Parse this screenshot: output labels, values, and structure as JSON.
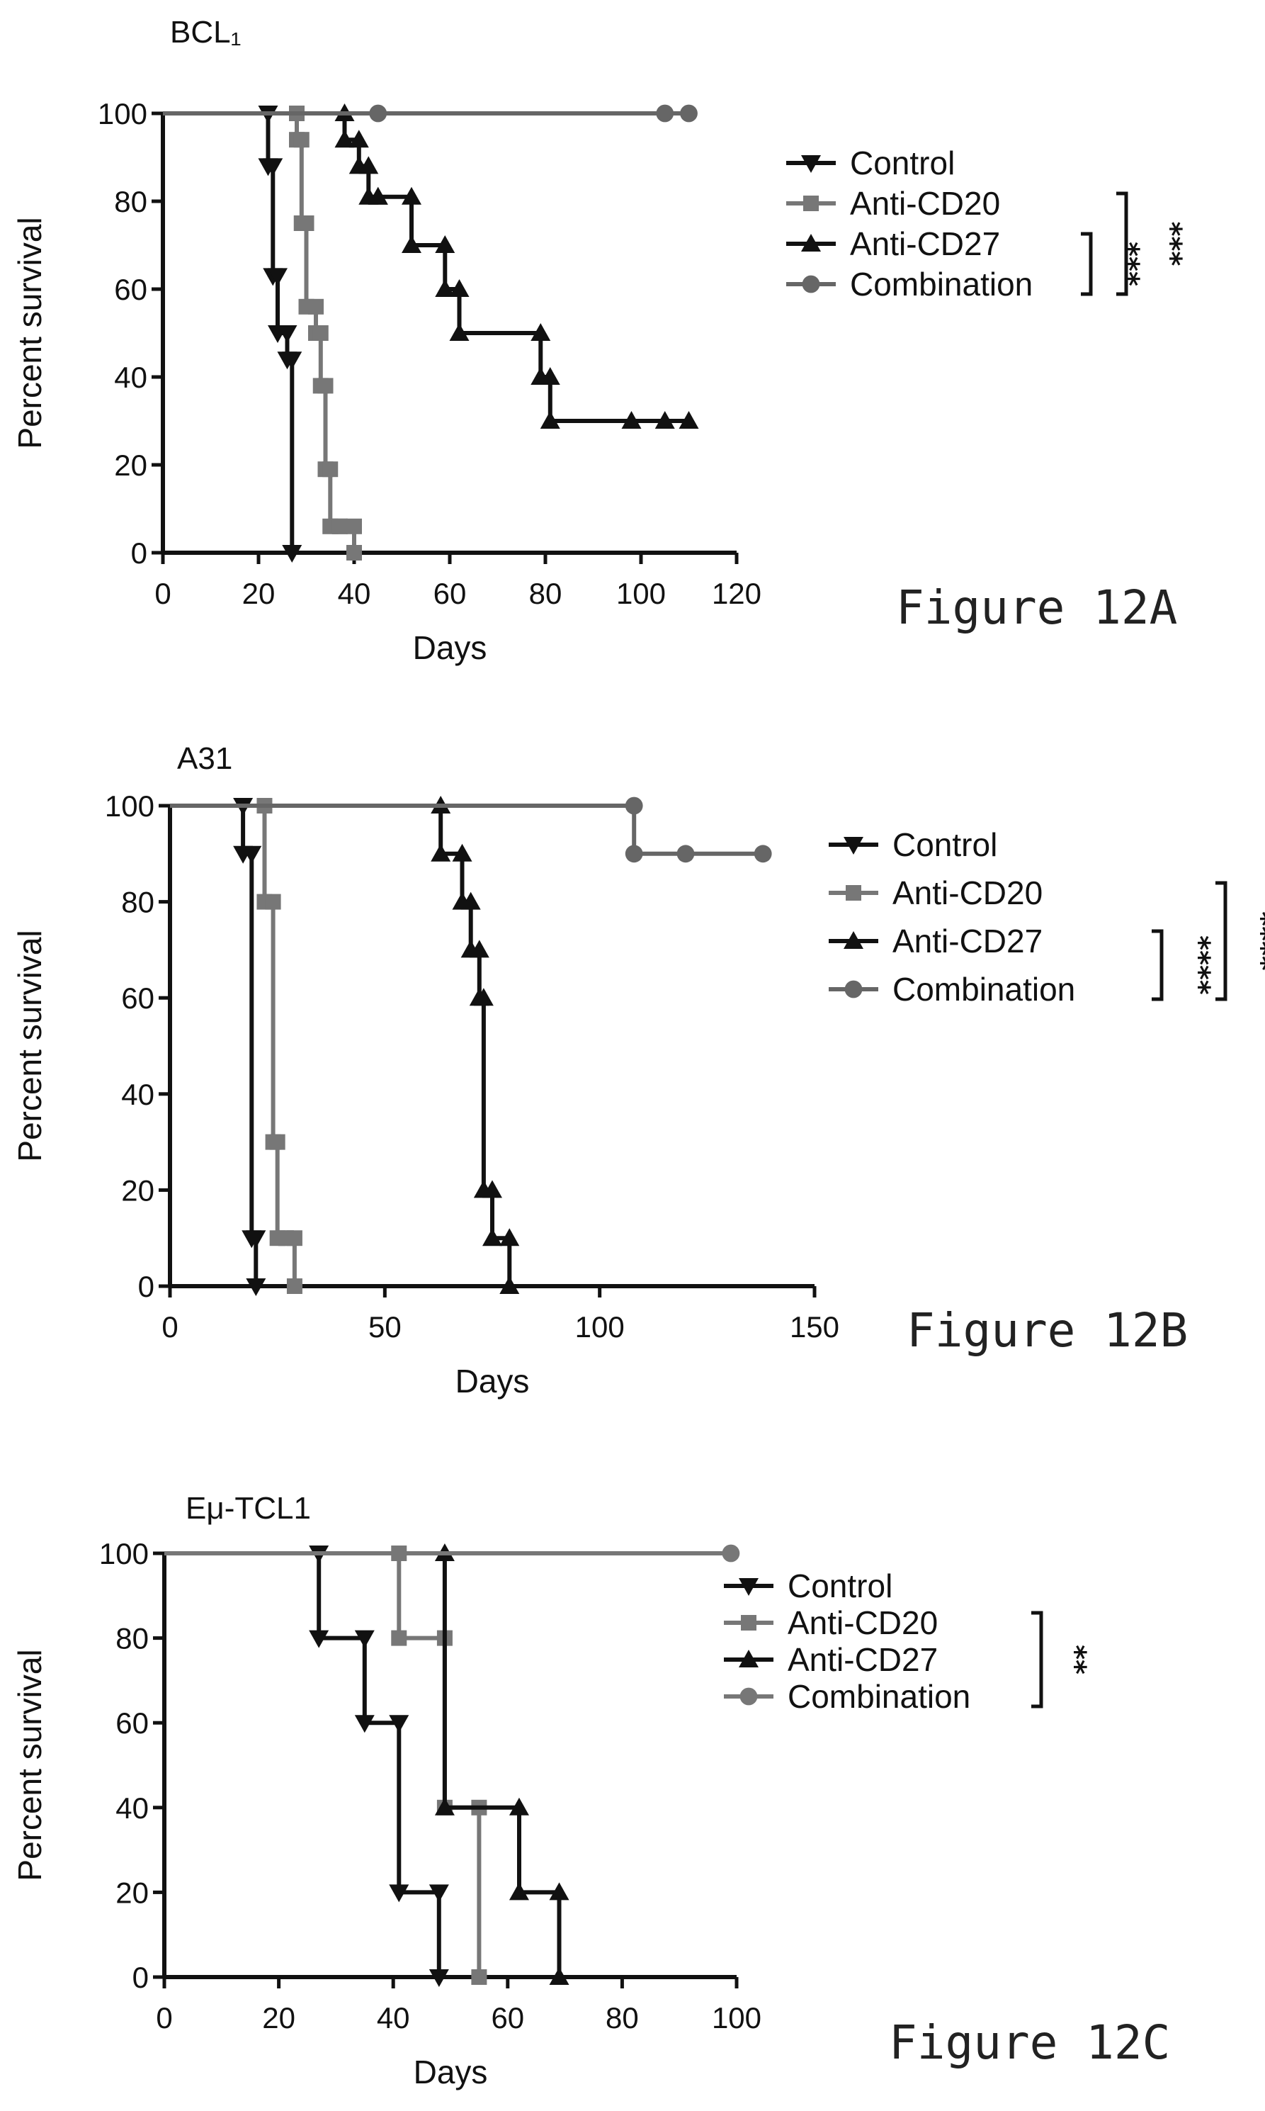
{
  "chart_data": [
    {
      "type": "line",
      "title": "BCL₁",
      "xlabel": "Days",
      "ylabel": "Percent survival",
      "xlim": [
        0,
        120
      ],
      "ylim": [
        0,
        100
      ],
      "x_ticks": [
        "0",
        "20",
        "40",
        "60",
        "80",
        "100",
        "120"
      ],
      "y_ticks": [
        "0",
        "20",
        "40",
        "60",
        "80",
        "100"
      ],
      "caption": "Figure 12A",
      "legend_position": "right",
      "grid": false,
      "series": [
        {
          "name": "Control",
          "marker": "down-triangle",
          "color": "#111111",
          "x": [
            0,
            22,
            22,
            23,
            23,
            24,
            24,
            26,
            26,
            27,
            27
          ],
          "y": [
            100,
            100,
            88,
            88,
            63,
            63,
            50,
            50,
            44,
            44,
            0
          ]
        },
        {
          "name": "Anti-CD20",
          "marker": "square",
          "color": "#777777",
          "x": [
            0,
            28,
            28,
            29,
            29,
            30,
            30,
            32,
            32,
            33,
            33,
            34,
            34,
            35,
            35,
            37,
            37,
            40,
            40
          ],
          "y": [
            100,
            100,
            94,
            94,
            75,
            75,
            56,
            56,
            50,
            50,
            38,
            38,
            19,
            19,
            6,
            6,
            6,
            6,
            0
          ]
        },
        {
          "name": "Anti-CD27",
          "marker": "up-triangle",
          "color": "#111111",
          "x": [
            0,
            38,
            38,
            41,
            41,
            43,
            43,
            45,
            45,
            52,
            52,
            59,
            59,
            62,
            62,
            79,
            79,
            81,
            81,
            98,
            105,
            110
          ],
          "y": [
            100,
            100,
            94,
            94,
            88,
            88,
            81,
            81,
            81,
            81,
            70,
            70,
            60,
            60,
            50,
            50,
            40,
            40,
            30,
            30,
            30,
            30
          ]
        },
        {
          "name": "Combination",
          "marker": "circle",
          "color": "#666666",
          "x": [
            0,
            45,
            105,
            110
          ],
          "y": [
            100,
            100,
            100,
            100
          ]
        }
      ],
      "significance": [
        {
          "pair": "Anti-CD27 vs Combination",
          "label": "***"
        },
        {
          "pair": "Anti-CD20 vs Combination",
          "label": "***"
        }
      ]
    },
    {
      "type": "line",
      "title": "A31",
      "xlabel": "Days",
      "ylabel": "Percent survival",
      "xlim": [
        0,
        150
      ],
      "ylim": [
        0,
        100
      ],
      "x_ticks": [
        "0",
        "50",
        "100",
        "150"
      ],
      "y_ticks": [
        "0",
        "20",
        "40",
        "60",
        "80",
        "100"
      ],
      "caption": "Figure 12B",
      "legend_position": "right",
      "grid": false,
      "series": [
        {
          "name": "Control",
          "marker": "down-triangle",
          "color": "#111111",
          "x": [
            0,
            17,
            17,
            19,
            19,
            20,
            20
          ],
          "y": [
            100,
            100,
            90,
            90,
            10,
            10,
            0
          ]
        },
        {
          "name": "Anti-CD20",
          "marker": "square",
          "color": "#777777",
          "x": [
            0,
            22,
            22,
            24,
            24,
            25,
            25,
            27,
            27,
            29,
            29
          ],
          "y": [
            100,
            100,
            80,
            80,
            30,
            30,
            10,
            10,
            10,
            10,
            0
          ]
        },
        {
          "name": "Anti-CD27",
          "marker": "up-triangle",
          "color": "#111111",
          "x": [
            0,
            63,
            63,
            68,
            68,
            70,
            70,
            72,
            72,
            73,
            73,
            75,
            75,
            79,
            79
          ],
          "y": [
            100,
            100,
            90,
            90,
            80,
            80,
            70,
            70,
            60,
            60,
            20,
            20,
            10,
            10,
            0
          ]
        },
        {
          "name": "Combination",
          "marker": "circle",
          "color": "#666666",
          "x": [
            0,
            108,
            108,
            120,
            138
          ],
          "y": [
            100,
            100,
            90,
            90,
            90
          ]
        }
      ],
      "significance": [
        {
          "pair": "Anti-CD27 vs Combination",
          "label": "****"
        },
        {
          "pair": "Anti-CD20 vs Combination",
          "label": "****"
        }
      ]
    },
    {
      "type": "line",
      "title": "Eμ-TCL1",
      "xlabel": "Days",
      "ylabel": "Percent survival",
      "xlim": [
        0,
        100
      ],
      "ylim": [
        0,
        100
      ],
      "x_ticks": [
        "0",
        "20",
        "40",
        "60",
        "80",
        "100"
      ],
      "y_ticks": [
        "0",
        "20",
        "40",
        "60",
        "80",
        "100"
      ],
      "caption": "Figure 12C",
      "legend_position": "right",
      "grid": false,
      "series": [
        {
          "name": "Control",
          "marker": "down-triangle",
          "color": "#111111",
          "x": [
            0,
            27,
            27,
            35,
            35,
            41,
            41,
            48,
            48
          ],
          "y": [
            100,
            100,
            80,
            80,
            60,
            60,
            20,
            20,
            0
          ]
        },
        {
          "name": "Anti-CD20",
          "marker": "square",
          "color": "#777777",
          "x": [
            0,
            41,
            41,
            49,
            49,
            55,
            55
          ],
          "y": [
            100,
            100,
            80,
            80,
            40,
            40,
            0
          ]
        },
        {
          "name": "Anti-CD27",
          "marker": "up-triangle",
          "color": "#111111",
          "x": [
            0,
            49,
            49,
            62,
            62,
            69,
            69
          ],
          "y": [
            100,
            100,
            40,
            40,
            20,
            20,
            0
          ]
        },
        {
          "name": "Combination",
          "marker": "circle",
          "color": "#777777",
          "x": [
            0,
            99
          ],
          "y": [
            100,
            100
          ]
        }
      ],
      "significance": [
        {
          "pair": "Anti-CD20 vs Combination",
          "label": "**"
        }
      ]
    }
  ]
}
